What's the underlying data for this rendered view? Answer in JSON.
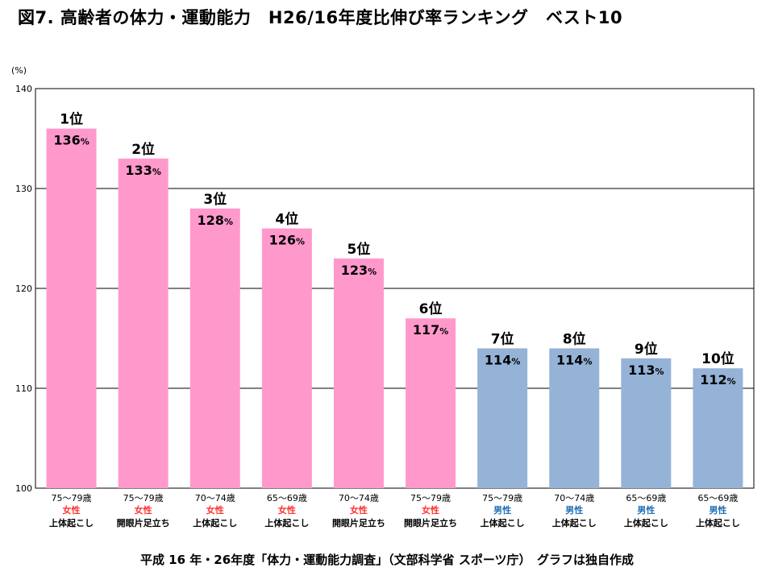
{
  "title": "図7.  高齢者の体力・運動能力　H26/16年度比伸び率ランキング　ベスト10",
  "y_unit": "(%)",
  "footer": "平成 16 年・26年度「体力・運動能力調査」（文部科学省  スポーツ庁）　グラフは独自作成",
  "colors": {
    "female": "#ff99cc",
    "male": "#95b3d7",
    "female_text": "#ff3333",
    "male_text": "#1f6fb4"
  },
  "chart_data": {
    "type": "bar",
    "ylim": [
      100,
      140
    ],
    "yticks": [
      100,
      110,
      120,
      130,
      140
    ],
    "grid": true,
    "value_suffix": "%",
    "bars": [
      {
        "rank": "1位",
        "value": 136,
        "value_label": "136",
        "age": "75〜79歳",
        "sex": "女性",
        "sex_key": "female",
        "test": "上体起こし"
      },
      {
        "rank": "2位",
        "value": 133,
        "value_label": "133",
        "age": "75〜79歳",
        "sex": "女性",
        "sex_key": "female",
        "test": "開眼片足立ち"
      },
      {
        "rank": "3位",
        "value": 128,
        "value_label": "128",
        "age": "70〜74歳",
        "sex": "女性",
        "sex_key": "female",
        "test": "上体起こし"
      },
      {
        "rank": "4位",
        "value": 126,
        "value_label": "126",
        "age": "65〜69歳",
        "sex": "女性",
        "sex_key": "female",
        "test": "上体起こし"
      },
      {
        "rank": "5位",
        "value": 123,
        "value_label": "123",
        "age": "70〜74歳",
        "sex": "女性",
        "sex_key": "female",
        "test": "開眼片足立ち"
      },
      {
        "rank": "6位",
        "value": 117,
        "value_label": "117",
        "age": "75〜79歳",
        "sex": "女性",
        "sex_key": "female",
        "test": "開眼片足立ち"
      },
      {
        "rank": "7位",
        "value": 114,
        "value_label": "114",
        "age": "75〜79歳",
        "sex": "男性",
        "sex_key": "male",
        "test": "上体起こし"
      },
      {
        "rank": "8位",
        "value": 114,
        "value_label": "114",
        "age": "70〜74歳",
        "sex": "男性",
        "sex_key": "male",
        "test": "上体起こし"
      },
      {
        "rank": "9位",
        "value": 113,
        "value_label": "113",
        "age": "65〜69歳",
        "sex": "男性",
        "sex_key": "male",
        "test": "上体起こし"
      },
      {
        "rank": "10位",
        "value": 112,
        "value_label": "112",
        "age": "65〜69歳",
        "sex": "男性",
        "sex_key": "male",
        "test": "上体起こし"
      }
    ]
  }
}
